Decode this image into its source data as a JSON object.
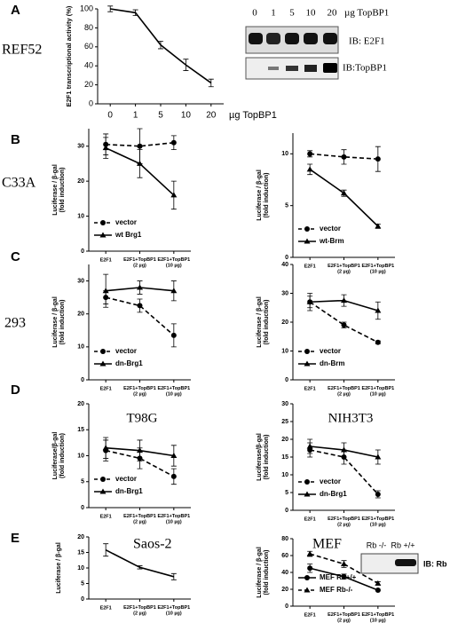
{
  "panel_labels": [
    "A",
    "B",
    "C",
    "D",
    "E"
  ],
  "cell_lines": [
    "REF52",
    "C33A",
    "293"
  ],
  "blot_a": {
    "lanes": [
      "0",
      "1",
      "5",
      "10",
      "20"
    ],
    "unit": "µg TopBP1",
    "rows": [
      "IB: E2F1",
      "IB:TopBP1"
    ]
  },
  "blot_e": {
    "lanes": [
      "Rb -/-",
      "Rb +/+"
    ],
    "label": "IB: Rb"
  },
  "chart_data": [
    {
      "type": "line",
      "y_label": "E2F1 transcriptional activity (%)",
      "x_label": "µg TopBP1",
      "categories": [
        "0",
        "1",
        "5",
        "10",
        "20"
      ],
      "ylim": [
        0,
        100
      ],
      "yticks": [
        0,
        20,
        40,
        60,
        80,
        100
      ],
      "series": [
        {
          "color": "#000000",
          "dash": false,
          "marker": "none",
          "values": [
            100,
            96,
            62,
            41,
            22
          ],
          "errors": [
            3,
            3,
            4,
            6,
            4
          ]
        }
      ]
    },
    {
      "type": "line",
      "y_label": "Luciferase / β-gal\n(fold induction)",
      "categories": [
        "E2F1",
        "E2F1+TopBP1\n(2 µg)",
        "E2F1+TopBP1\n(10 µg)"
      ],
      "ylim": [
        0,
        35
      ],
      "yticks": [
        0,
        10,
        20,
        30
      ],
      "legend": "lower left",
      "series": [
        {
          "name": "vector",
          "color": "#000000",
          "dash": true,
          "marker": "circle",
          "values": [
            30.5,
            30,
            31
          ],
          "errors": [
            3,
            5,
            2
          ]
        },
        {
          "name": "wt Brg1",
          "color": "#000000",
          "dash": false,
          "marker": "triangle",
          "values": [
            29.5,
            25,
            16
          ],
          "errors": [
            3,
            4,
            4
          ]
        }
      ]
    },
    {
      "type": "line",
      "y_label": "Luciferase / β-gal\n(fold induction)",
      "categories": [
        "E2F1",
        "E2F1+TopBP1\n(2 µg)",
        "E2F1+TopBP1\n(10 µg)"
      ],
      "ylim": [
        0,
        12
      ],
      "yticks": [
        0,
        5,
        10
      ],
      "legend": "lower left",
      "series": [
        {
          "name": "vector",
          "color": "#000000",
          "dash": true,
          "marker": "circle",
          "values": [
            10,
            9.7,
            9.5
          ],
          "errors": [
            0.3,
            0.7,
            1.2
          ]
        },
        {
          "name": "wt-Brm",
          "color": "#000000",
          "dash": false,
          "marker": "triangle",
          "values": [
            8.5,
            6.2,
            3
          ],
          "errors": [
            0.5,
            0.3,
            0.2
          ]
        }
      ]
    },
    {
      "type": "line",
      "y_label": "Luciferase / β-gal\n(fold induction)",
      "categories": [
        "E2F1",
        "E2F1+TopBP1\n(2 µg)",
        "E2F1+TopBP1\n(10 µg)"
      ],
      "ylim": [
        0,
        35
      ],
      "yticks": [
        0,
        10,
        20,
        30
      ],
      "legend": "lower left",
      "series": [
        {
          "name": "vector",
          "color": "#000000",
          "dash": true,
          "marker": "circle",
          "values": [
            25,
            22.5,
            13.5
          ],
          "errors": [
            2,
            2,
            3.5
          ]
        },
        {
          "name": "dn-Brg1",
          "color": "#000000",
          "dash": false,
          "marker": "triangle",
          "values": [
            27,
            28,
            27
          ],
          "errors": [
            5,
            2,
            3
          ]
        }
      ]
    },
    {
      "type": "line",
      "y_label": "Luciferase / β-gal\n(fold induction)",
      "categories": [
        "E2F1",
        "E2F1+TopBP1\n(2 µg)",
        "E2F1+TopBP1\n(10 µg)"
      ],
      "ylim": [
        0,
        40
      ],
      "yticks": [
        0,
        10,
        20,
        30,
        40
      ],
      "legend": "lower left",
      "series": [
        {
          "name": "vector",
          "color": "#000000",
          "dash": true,
          "marker": "circle",
          "values": [
            27,
            19,
            13
          ],
          "errors": [
            2,
            1,
            0.5
          ]
        },
        {
          "name": "dn-Brm",
          "color": "#000000",
          "dash": false,
          "marker": "triangle",
          "values": [
            27,
            27.5,
            24
          ],
          "errors": [
            3,
            2,
            3
          ]
        }
      ]
    },
    {
      "type": "line",
      "annotation": "T98G",
      "y_label": "Luciferase/β-gal\n(fold induction)",
      "categories": [
        "E2F1",
        "E2F1+TopBP1\n(2 µg)",
        "E2F1+TopBP1\n(10 µg)"
      ],
      "ylim": [
        0,
        20
      ],
      "yticks": [
        0,
        5,
        10,
        15,
        20
      ],
      "legend": "lower left",
      "series": [
        {
          "name": "vector",
          "color": "#000000",
          "dash": true,
          "marker": "circle",
          "values": [
            11,
            9.5,
            6
          ],
          "errors": [
            2,
            2,
            1.5
          ]
        },
        {
          "name": "dn-Brg1",
          "color": "#000000",
          "dash": false,
          "marker": "triangle",
          "values": [
            11.5,
            11,
            10
          ],
          "errors": [
            2,
            2,
            2
          ]
        }
      ]
    },
    {
      "type": "line",
      "annotation": "NIH3T3",
      "y_label": "Luciferase/β-gal\n(fold induction)",
      "categories": [
        "E2F1",
        "E2F1+TopBP1\n(2 µg)",
        "E2F1+TopBP1\n(10 µg)"
      ],
      "ylim": [
        0,
        30
      ],
      "yticks": [
        0,
        5,
        10,
        15,
        20,
        25,
        30
      ],
      "legend": "lower left",
      "series": [
        {
          "name": "vector",
          "color": "#000000",
          "dash": true,
          "marker": "circle",
          "values": [
            17,
            15,
            4.5
          ],
          "errors": [
            2,
            2,
            1
          ]
        },
        {
          "name": "dn-Brg1",
          "color": "#000000",
          "dash": false,
          "marker": "triangle",
          "values": [
            18,
            17,
            15
          ],
          "errors": [
            2,
            2,
            2
          ]
        }
      ]
    },
    {
      "type": "line",
      "annotation": "Saos-2",
      "y_label": "Luciferase / β-gal",
      "categories": [
        "E2F1",
        "E2F1+TopBP1\n(2 µg)",
        "E2F1+TopBP1\n(10 µg)"
      ],
      "ylim": [
        0,
        20
      ],
      "yticks": [
        0,
        5,
        10,
        15,
        20
      ],
      "series": [
        {
          "color": "#000000",
          "dash": false,
          "marker": "none",
          "values": [
            15.8,
            10.2,
            7.2
          ],
          "errors": [
            2,
            0.5,
            1
          ]
        }
      ]
    },
    {
      "type": "line",
      "annotation": "MEF",
      "y_label": "Luciferase / β-gal\n(fold induction)",
      "categories": [
        "E2F1",
        "E2F1+TopBP1\n(2 µg)",
        "E2F1+TopBP1\n(10 µg)"
      ],
      "ylim": [
        0,
        80
      ],
      "yticks": [
        0,
        20,
        40,
        60,
        80
      ],
      "legend": "lower left",
      "series": [
        {
          "name": "MEF Rb+/+",
          "color": "#000000",
          "dash": false,
          "marker": "circle",
          "values": [
            45,
            35,
            19
          ],
          "errors": [
            5,
            3,
            1
          ]
        },
        {
          "name": "MEF Rb-/-",
          "color": "#000000",
          "dash": true,
          "marker": "triangle",
          "values": [
            62,
            50,
            27
          ],
          "errors": [
            3,
            4,
            2
          ]
        }
      ]
    }
  ]
}
